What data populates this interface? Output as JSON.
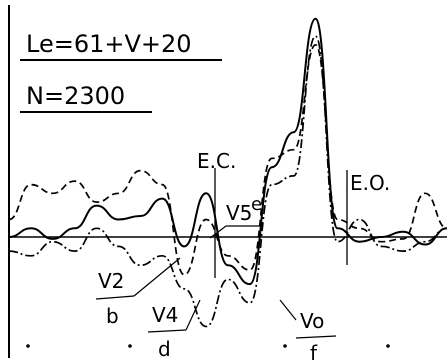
{
  "chart_data": {
    "type": "line",
    "annotations": {
      "equation": "Le=61+V+20",
      "n_value": "N=2300",
      "ec_marker": "E.C.",
      "eo_marker": "E.O."
    },
    "series_labels": [
      {
        "id": "v2",
        "primary": "V2",
        "secondary": "b"
      },
      {
        "id": "v4",
        "primary": "V4",
        "secondary": "d"
      },
      {
        "id": "v5",
        "primary": "V5",
        "secondary": "e"
      },
      {
        "id": "vo",
        "primary": "Vo",
        "secondary": "f"
      }
    ],
    "x": [
      0,
      5,
      10,
      15,
      20,
      25,
      30,
      35,
      40,
      45,
      50,
      55,
      60,
      65,
      70,
      75,
      80,
      85,
      90,
      95,
      100
    ],
    "ylim": [
      -1.2,
      1.3
    ],
    "series": [
      {
        "id": "s1",
        "style": "solid",
        "values": [
          0,
          0.05,
          -0.02,
          0.05,
          0.18,
          0.1,
          0.12,
          0.22,
          -0.1,
          0.25,
          -0.3,
          -0.5,
          0.4,
          0.6,
          1.25,
          0.05,
          -0.05,
          0,
          0.03,
          -0.08,
          0.05
        ]
      },
      {
        "id": "s2",
        "style": "dashed",
        "values": [
          0.1,
          0.3,
          0.25,
          0.32,
          0.2,
          0.25,
          0.38,
          0.3,
          -0.4,
          0.1,
          -0.2,
          -0.35,
          0.45,
          0.5,
          1.1,
          0.1,
          0.05,
          -0.05,
          -0.02,
          0.25,
          0.05
        ]
      },
      {
        "id": "s3",
        "style": "dashdot",
        "values": [
          -0.15,
          -0.2,
          -0.05,
          -0.15,
          0.05,
          -0.1,
          -0.3,
          -0.2,
          -0.55,
          -0.95,
          -0.45,
          -0.7,
          0.3,
          0.35,
          1.15,
          -0.05,
          0.1,
          -0.1,
          -0.15,
          -0.05,
          0.05
        ]
      }
    ]
  }
}
